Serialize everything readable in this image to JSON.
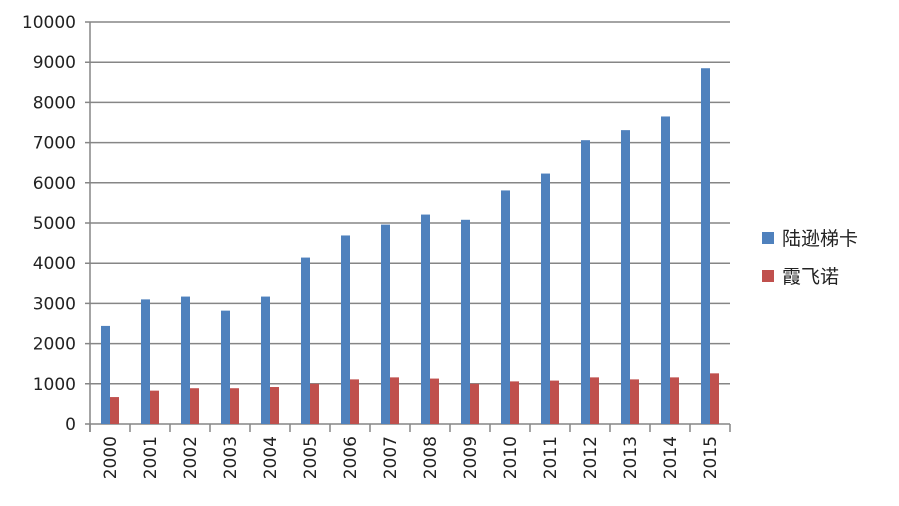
{
  "chart_data": {
    "type": "bar",
    "title": "",
    "xlabel": "",
    "ylabel": "",
    "ylim": [
      0,
      10000
    ],
    "yticks": [
      0,
      1000,
      2000,
      3000,
      4000,
      5000,
      6000,
      7000,
      8000,
      9000,
      10000
    ],
    "grid": true,
    "legend_position": "right",
    "categories": [
      "2000",
      "2001",
      "2002",
      "2003",
      "2004",
      "2005",
      "2006",
      "2007",
      "2008",
      "2009",
      "2010",
      "2011",
      "2012",
      "2013",
      "2014",
      "2015"
    ],
    "series": [
      {
        "name": "陆逊梯卡",
        "color": "#4f81bd",
        "values": [
          2440,
          3100,
          3170,
          2820,
          3170,
          4140,
          4690,
          4960,
          5210,
          5080,
          5810,
          6230,
          7060,
          7310,
          7650,
          8850
        ]
      },
      {
        "name": "霞飞诺",
        "color": "#c0504d",
        "values": [
          670,
          830,
          890,
          890,
          920,
          1000,
          1110,
          1160,
          1130,
          1000,
          1060,
          1080,
          1160,
          1110,
          1160,
          1260
        ]
      }
    ]
  }
}
